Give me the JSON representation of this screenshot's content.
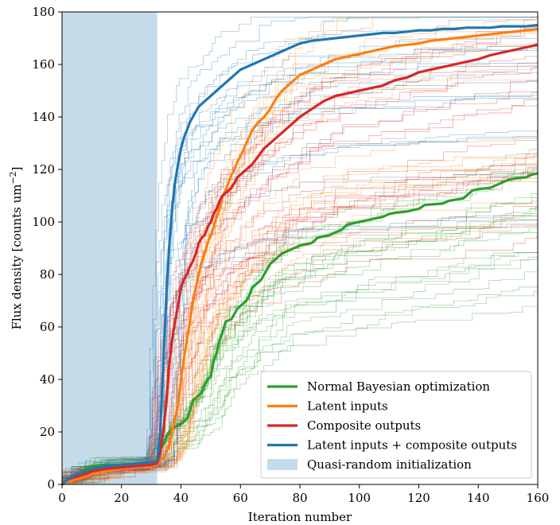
{
  "chart_data": {
    "type": "line",
    "title": "",
    "xlabel": "Iteration number",
    "ylabel_main": "Flux density [counts um",
    "ylabel_sup": "−2",
    "ylabel_tail": "]",
    "xlim": [
      0,
      160
    ],
    "ylim": [
      0,
      180
    ],
    "xticks": [
      0,
      20,
      40,
      60,
      80,
      100,
      120,
      140,
      160
    ],
    "yticks": [
      0,
      20,
      40,
      60,
      80,
      100,
      120,
      140,
      160,
      180
    ],
    "grid": false,
    "legend_position": "lower-right",
    "initialization": {
      "label": "Quasi-random initialization",
      "x_start": 0,
      "x_end": 32,
      "color": "#c6dbea"
    },
    "series": [
      {
        "name": "Normal Bayesian optimization",
        "color": "#2ca02c",
        "x": [
          0,
          2,
          5,
          8,
          10,
          15,
          20,
          25,
          30,
          32,
          33,
          34,
          35,
          36,
          37,
          38,
          40,
          42,
          43,
          44,
          45,
          46,
          47,
          48,
          49,
          50,
          51,
          52,
          53,
          54,
          55,
          56,
          57,
          58,
          59,
          60,
          62,
          63,
          64,
          65,
          66,
          67,
          68,
          70,
          72,
          74,
          76,
          78,
          80,
          84,
          86,
          90,
          92,
          94,
          96,
          100,
          104,
          108,
          110,
          112,
          116,
          120,
          122,
          128,
          130,
          135,
          138,
          140,
          144,
          146,
          148,
          150,
          152,
          156,
          158,
          160
        ],
        "y": [
          0,
          2,
          4,
          6,
          7,
          7.5,
          7.5,
          8,
          8.5,
          9,
          13,
          15,
          18,
          20,
          21,
          22,
          23,
          25,
          28,
          32,
          33,
          34,
          35,
          38,
          40,
          41,
          47,
          50,
          55,
          58,
          62,
          62.5,
          63,
          65,
          67,
          68,
          70,
          72,
          75,
          76,
          77,
          78,
          80,
          84,
          86,
          88,
          89,
          90,
          91,
          92,
          94,
          95,
          96,
          97,
          99,
          100,
          101,
          102,
          103,
          103.5,
          104,
          105,
          106.5,
          107,
          108,
          109,
          112,
          112.5,
          113,
          114,
          115,
          116,
          116.5,
          117,
          118,
          118.5
        ]
      },
      {
        "name": "Latent inputs",
        "color": "#ff7f0e",
        "x": [
          0,
          2,
          5,
          8,
          10,
          15,
          20,
          25,
          30,
          32,
          33,
          34,
          35,
          36,
          37,
          38,
          39,
          40,
          41,
          42,
          43,
          44,
          45,
          46,
          47,
          48,
          49,
          50,
          51,
          52,
          53,
          54,
          55,
          56,
          57,
          58,
          59,
          60,
          62,
          64,
          66,
          68,
          70,
          72,
          74,
          76,
          78,
          80,
          84,
          88,
          92,
          96,
          100,
          104,
          108,
          112,
          116,
          120,
          124,
          128,
          132,
          136,
          140,
          144,
          148,
          152,
          156,
          160
        ],
        "y": [
          0,
          1,
          2,
          3,
          4,
          5,
          6,
          6.5,
          7,
          7.5,
          9,
          10,
          12,
          15,
          20,
          25,
          30,
          40,
          48,
          55,
          62,
          70,
          75,
          80,
          85,
          88,
          92,
          95,
          98,
          102,
          105,
          110,
          112,
          115,
          118,
          120,
          123,
          125,
          130,
          135,
          138,
          140,
          143,
          147,
          150,
          152,
          154,
          156,
          158,
          160,
          162,
          163,
          164,
          165,
          166,
          167,
          167.5,
          168,
          169,
          169.5,
          170,
          170.5,
          171,
          171.5,
          172,
          172.5,
          173,
          173.5
        ]
      },
      {
        "name": "Composite outputs",
        "color": "#d62728",
        "x": [
          0,
          2,
          5,
          8,
          10,
          15,
          20,
          25,
          30,
          32,
          33,
          34,
          35,
          36,
          37,
          38,
          39,
          40,
          41,
          42,
          43,
          44,
          45,
          46,
          47,
          48,
          49,
          50,
          51,
          52,
          53,
          54,
          55,
          56,
          57,
          58,
          59,
          60,
          62,
          64,
          66,
          68,
          70,
          72,
          74,
          76,
          78,
          80,
          84,
          88,
          92,
          96,
          100,
          104,
          108,
          112,
          116,
          120,
          124,
          128,
          132,
          136,
          140,
          144,
          148,
          152,
          156,
          160
        ],
        "y": [
          0,
          2,
          3,
          4,
          5,
          6,
          6.5,
          7,
          7.5,
          8,
          12,
          20,
          30,
          45,
          55,
          62,
          68,
          75,
          78,
          80,
          83,
          85,
          88,
          92,
          94,
          95,
          98,
          100,
          103,
          105,
          108,
          110,
          111,
          112,
          113,
          115,
          117,
          118,
          120,
          122,
          125,
          128,
          130,
          132,
          134,
          136,
          138,
          140,
          143,
          146,
          148,
          149,
          150,
          151,
          152,
          154,
          155,
          157,
          158,
          159,
          160,
          161,
          162,
          163.5,
          164.5,
          165.5,
          166.5,
          167.5
        ]
      },
      {
        "name": "Latent inputs + composite outputs",
        "color": "#1f77b4",
        "x": [
          0,
          2,
          5,
          8,
          10,
          15,
          20,
          25,
          30,
          32,
          33,
          34,
          35,
          36,
          37,
          38,
          39,
          40,
          41,
          42,
          43,
          44,
          45,
          46,
          47,
          48,
          49,
          50,
          51,
          52,
          53,
          54,
          55,
          56,
          57,
          58,
          59,
          60,
          62,
          64,
          66,
          68,
          70,
          72,
          74,
          76,
          78,
          80,
          84,
          88,
          92,
          96,
          100,
          104,
          108,
          112,
          116,
          120,
          124,
          128,
          132,
          136,
          140,
          144,
          148,
          152,
          156,
          160
        ],
        "y": [
          0,
          2,
          4,
          5,
          6,
          7,
          7.5,
          8,
          8.5,
          9,
          20,
          45,
          70,
          90,
          105,
          115,
          122,
          128,
          132,
          135,
          138,
          140,
          142,
          144,
          145,
          146,
          147,
          148,
          149,
          150,
          151,
          152,
          153,
          154,
          155,
          156,
          157,
          158,
          159,
          160,
          161,
          162,
          163,
          164,
          165,
          166,
          167,
          168,
          169,
          169.5,
          170,
          170.5,
          171,
          171.5,
          172,
          172,
          172.5,
          173,
          173,
          173.5,
          173.5,
          174,
          174,
          174,
          174.5,
          174.5,
          174.5,
          175
        ]
      }
    ]
  }
}
